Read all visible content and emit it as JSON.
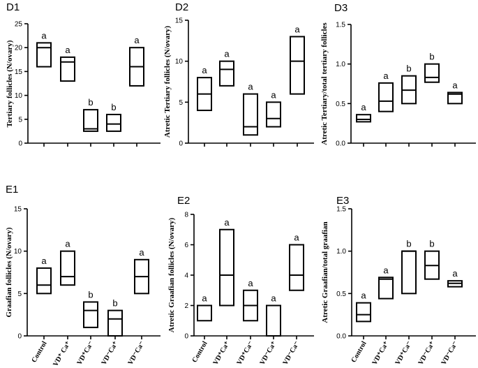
{
  "chart_data": [
    {
      "id": "D1",
      "panel_label": "D1",
      "type": "box",
      "ylabel": "Tertiary follicles (N/ovary)",
      "ylim": [
        0,
        25
      ],
      "yticks": [
        0,
        5,
        10,
        15,
        20,
        25
      ],
      "ytick_labels": [
        "0",
        "5",
        "10",
        "15",
        "20",
        "25"
      ],
      "categories": [
        "",
        "",
        "",
        "",
        ""
      ],
      "boxes": [
        {
          "low": 16,
          "median": 20,
          "high": 21,
          "sig": "a"
        },
        {
          "low": 13,
          "median": 17,
          "high": 18,
          "sig": "a"
        },
        {
          "low": 2.5,
          "median": 3,
          "high": 7,
          "sig": "b"
        },
        {
          "low": 2.5,
          "median": 4,
          "high": 6,
          "sig": "b"
        },
        {
          "low": 12,
          "median": 16,
          "high": 20,
          "sig": "a"
        }
      ]
    },
    {
      "id": "D2",
      "panel_label": "D2",
      "type": "box",
      "ylabel": "Atretic Tertiary follicles (N/ovary)",
      "ylim": [
        0,
        15
      ],
      "yticks": [
        0,
        5,
        10,
        15
      ],
      "ytick_labels": [
        "0",
        "5",
        "10",
        "15"
      ],
      "categories": [
        "",
        "",
        "",
        "",
        ""
      ],
      "boxes": [
        {
          "low": 4,
          "median": 6,
          "high": 8,
          "sig": "a"
        },
        {
          "low": 7,
          "median": 9,
          "high": 10,
          "sig": "a"
        },
        {
          "low": 1,
          "median": 2,
          "high": 6,
          "sig": "a"
        },
        {
          "low": 2,
          "median": 3,
          "high": 5,
          "sig": "a"
        },
        {
          "low": 6,
          "median": 10,
          "high": 13,
          "sig": "a"
        }
      ]
    },
    {
      "id": "D3",
      "panel_label": "D3",
      "type": "box",
      "ylabel": "Atretic Tertiary/total tertiary follicles",
      "ylim": [
        0,
        1.5
      ],
      "yticks": [
        0,
        0.5,
        1.0,
        1.5
      ],
      "ytick_labels": [
        "0.0",
        "0.5",
        "1.0",
        "1.5"
      ],
      "categories": [
        "",
        "",
        "",
        "",
        ""
      ],
      "boxes": [
        {
          "low": 0.27,
          "median": 0.3,
          "high": 0.36,
          "sig": "a"
        },
        {
          "low": 0.4,
          "median": 0.53,
          "high": 0.76,
          "sig": "a"
        },
        {
          "low": 0.5,
          "median": 0.67,
          "high": 0.85,
          "sig": "b"
        },
        {
          "low": 0.77,
          "median": 0.83,
          "high": 1.0,
          "sig": "b"
        },
        {
          "low": 0.5,
          "median": 0.62,
          "high": 0.64,
          "sig": "a"
        }
      ]
    },
    {
      "id": "E1",
      "panel_label": "E1",
      "type": "box",
      "ylabel": "Graafian follicles (N/ovary)",
      "ylim": [
        0,
        15
      ],
      "yticks": [
        0,
        5,
        10,
        15
      ],
      "ytick_labels": [
        "0",
        "5",
        "10",
        "15"
      ],
      "categories": [
        "Control",
        "VD⁺ Ca⁺",
        "VD⁺Ca⁻",
        "VD⁻Ca⁺",
        "VD⁻Ca⁻"
      ],
      "boxes": [
        {
          "low": 5,
          "median": 6,
          "high": 8,
          "sig": "a"
        },
        {
          "low": 6,
          "median": 7,
          "high": 10,
          "sig": "a"
        },
        {
          "low": 1,
          "median": 3,
          "high": 4,
          "sig": "b"
        },
        {
          "low": 0,
          "median": 2,
          "high": 3,
          "sig": "b"
        },
        {
          "low": 5,
          "median": 7,
          "high": 9,
          "sig": "a"
        }
      ]
    },
    {
      "id": "E2",
      "panel_label": "E2",
      "type": "box",
      "ylabel": "Atretic Graafian follicles (N/ovary)",
      "ylim": [
        0,
        8
      ],
      "yticks": [
        0,
        2,
        4,
        6,
        8
      ],
      "ytick_labels": [
        "0",
        "2",
        "4",
        "6",
        "8"
      ],
      "categories": [
        "Control",
        "VD⁺Ca⁺",
        "VD⁺Ca⁻",
        "VD⁻Ca⁺",
        "VD⁻Ca⁻"
      ],
      "boxes": [
        {
          "low": 1,
          "median": 2,
          "high": 2,
          "sig": "a"
        },
        {
          "low": 2,
          "median": 4,
          "high": 7,
          "sig": "a"
        },
        {
          "low": 1,
          "median": 2,
          "high": 3,
          "sig": "a"
        },
        {
          "low": 0,
          "median": 2,
          "high": 2,
          "sig": "a"
        },
        {
          "low": 3,
          "median": 4,
          "high": 6,
          "sig": "a"
        }
      ]
    },
    {
      "id": "E3",
      "panel_label": "E3",
      "type": "box",
      "ylabel": "Atretic Graafian/total graafian",
      "ylim": [
        0,
        1.5
      ],
      "yticks": [
        0,
        0.5,
        1.0,
        1.5
      ],
      "ytick_labels": [
        "0.0",
        "0.5",
        "1.0",
        "1.5"
      ],
      "categories": [
        "Control",
        "VD⁺Ca⁺",
        "VD⁺Ca⁻",
        "VD⁻Ca⁺",
        "VD⁻Ca⁻"
      ],
      "boxes": [
        {
          "low": 0.17,
          "median": 0.25,
          "high": 0.39,
          "sig": "a"
        },
        {
          "low": 0.44,
          "median": 0.67,
          "high": 0.69,
          "sig": "a"
        },
        {
          "low": 0.5,
          "median": 1.0,
          "high": 1.0,
          "sig": "b"
        },
        {
          "low": 0.67,
          "median": 0.83,
          "high": 1.0,
          "sig": "b"
        },
        {
          "low": 0.58,
          "median": 0.62,
          "high": 0.65,
          "sig": "a"
        }
      ]
    }
  ]
}
